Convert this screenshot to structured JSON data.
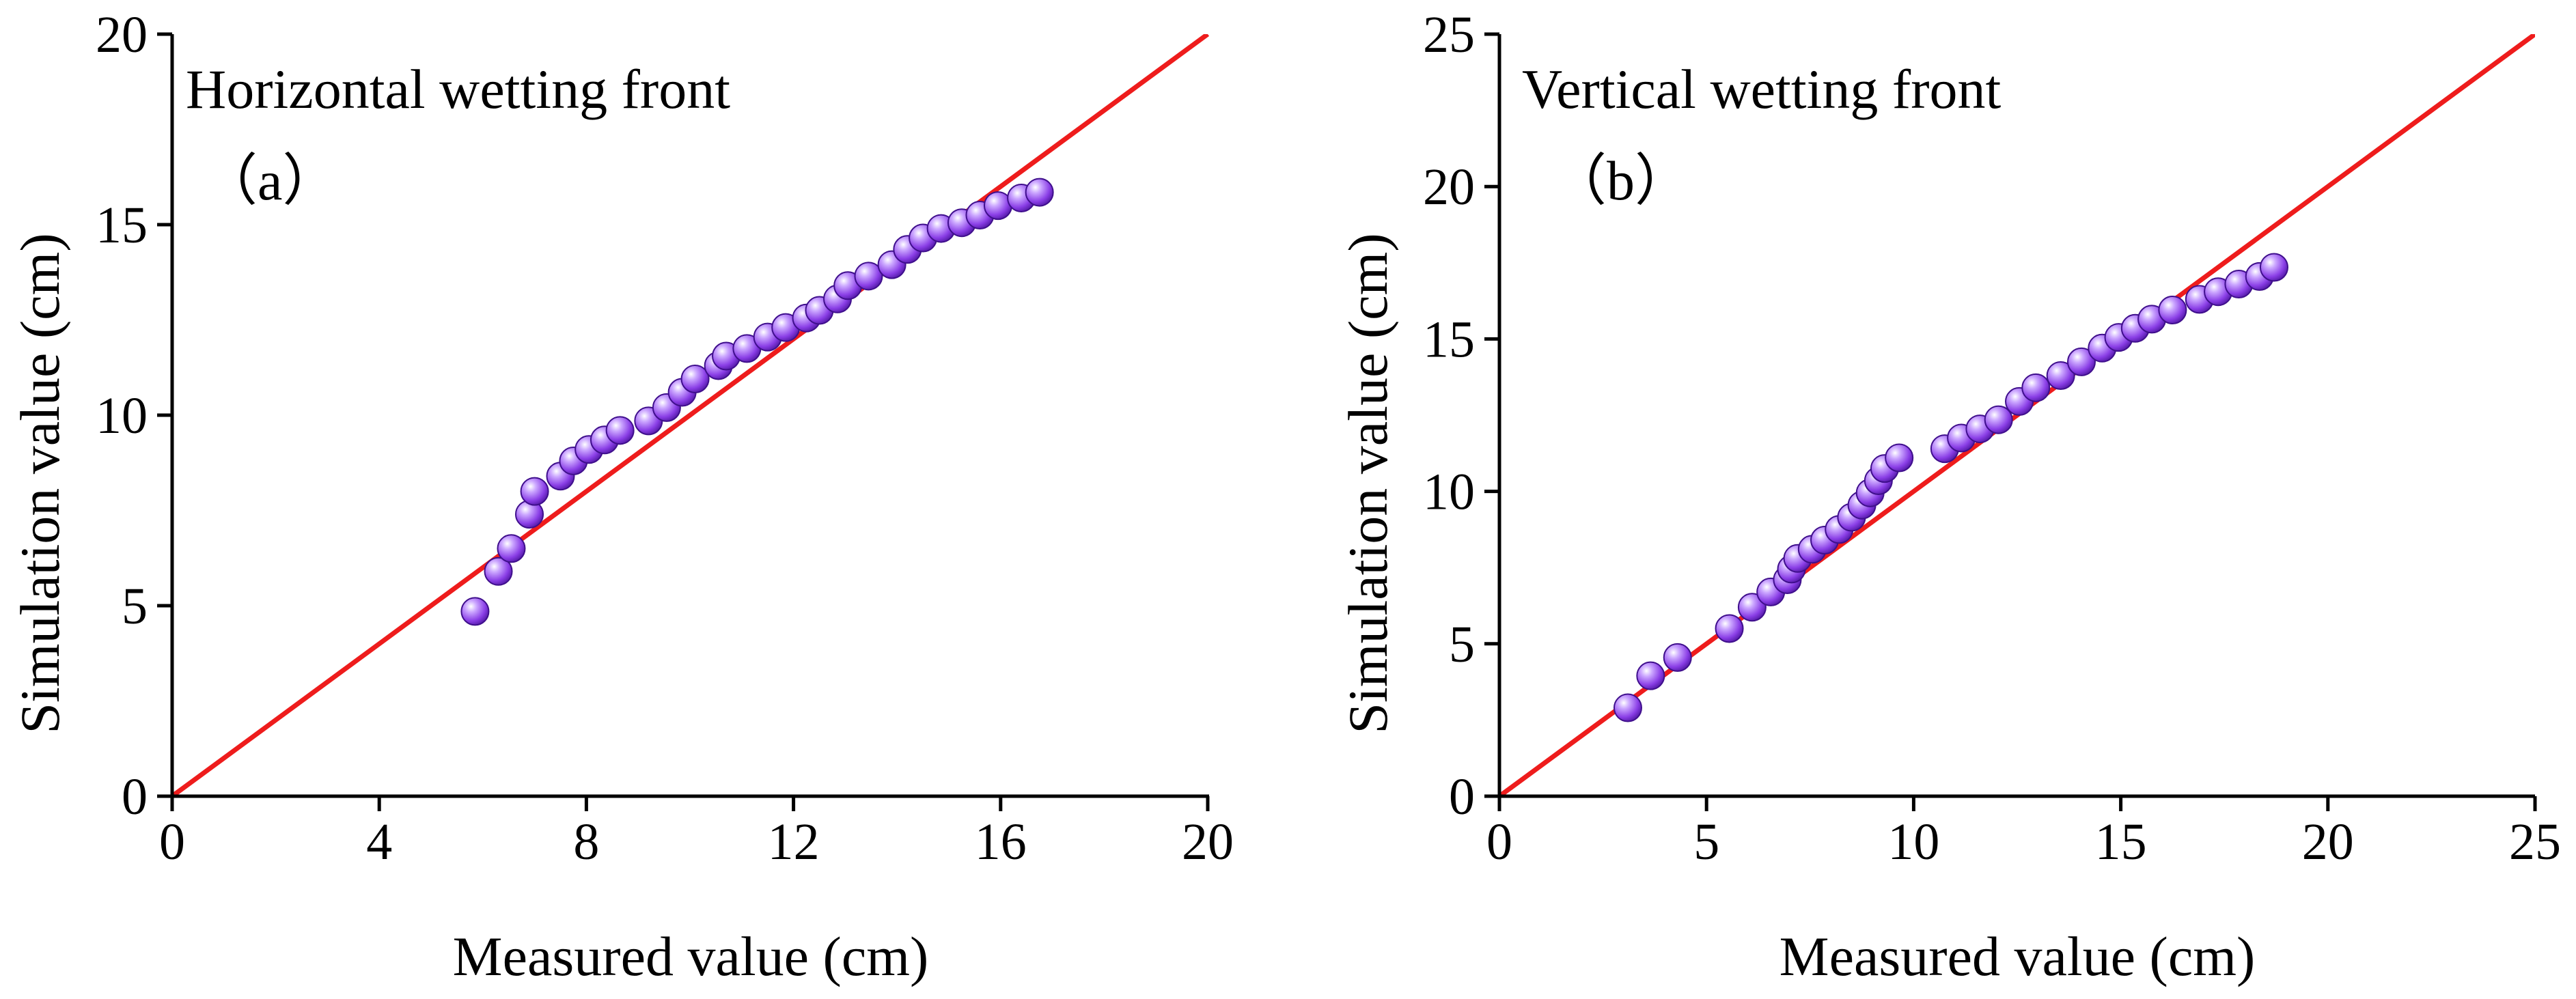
{
  "chart_data": [
    {
      "type": "scatter",
      "title": "Horizontal wetting front",
      "panel_label": "（a）",
      "xlabel": "Measured value (cm)",
      "ylabel": "Simulation value (cm)",
      "xlim": [
        0,
        20
      ],
      "ylim": [
        0,
        20
      ],
      "xticks": [
        "0",
        "4",
        "8",
        "12",
        "16",
        "20"
      ],
      "yticks": [
        "0",
        "5",
        "10",
        "15",
        "20"
      ],
      "reference_line": {
        "name": "1:1 line",
        "color": "#ee1c1c",
        "from": [
          0,
          0
        ],
        "to": [
          20,
          20
        ]
      },
      "marker_color": "#8a3ee6",
      "series": [
        {
          "name": "Horizontal wetting front",
          "points": [
            [
              5.85,
              4.85
            ],
            [
              6.3,
              5.9
            ],
            [
              6.55,
              6.5
            ],
            [
              6.9,
              7.4
            ],
            [
              7.0,
              8.0
            ],
            [
              7.5,
              8.4
            ],
            [
              7.75,
              8.8
            ],
            [
              8.05,
              9.1
            ],
            [
              8.35,
              9.35
            ],
            [
              8.65,
              9.6
            ],
            [
              9.2,
              9.85
            ],
            [
              9.55,
              10.2
            ],
            [
              9.85,
              10.6
            ],
            [
              10.1,
              10.95
            ],
            [
              10.55,
              11.3
            ],
            [
              10.7,
              11.55
            ],
            [
              11.1,
              11.75
            ],
            [
              11.5,
              12.05
            ],
            [
              11.85,
              12.3
            ],
            [
              12.25,
              12.55
            ],
            [
              12.5,
              12.75
            ],
            [
              12.85,
              13.05
            ],
            [
              13.05,
              13.4
            ],
            [
              13.45,
              13.65
            ],
            [
              13.9,
              13.95
            ],
            [
              14.2,
              14.35
            ],
            [
              14.5,
              14.65
            ],
            [
              14.85,
              14.9
            ],
            [
              15.25,
              15.05
            ],
            [
              15.6,
              15.25
            ],
            [
              15.95,
              15.5
            ],
            [
              16.4,
              15.7
            ],
            [
              16.75,
              15.85
            ]
          ]
        }
      ]
    },
    {
      "type": "scatter",
      "title": "Vertical wetting front",
      "panel_label": "（b）",
      "xlabel": "Measured value (cm)",
      "ylabel": "Simulation value (cm)",
      "xlim": [
        0,
        25
      ],
      "ylim": [
        0,
        25
      ],
      "xticks": [
        "0",
        "5",
        "10",
        "15",
        "20",
        "25"
      ],
      "yticks": [
        "0",
        "5",
        "10",
        "15",
        "20",
        "25"
      ],
      "reference_line": {
        "name": "1:1 line",
        "color": "#ee1c1c",
        "from": [
          0,
          0
        ],
        "to": [
          25,
          25
        ]
      },
      "marker_color": "#8a3ee6",
      "series": [
        {
          "name": "Vertical wetting front",
          "points": [
            [
              3.1,
              2.9
            ],
            [
              3.65,
              3.95
            ],
            [
              4.3,
              4.55
            ],
            [
              5.55,
              5.5
            ],
            [
              6.1,
              6.2
            ],
            [
              6.55,
              6.7
            ],
            [
              6.95,
              7.1
            ],
            [
              7.05,
              7.45
            ],
            [
              7.2,
              7.8
            ],
            [
              7.55,
              8.1
            ],
            [
              7.85,
              8.4
            ],
            [
              8.2,
              8.75
            ],
            [
              8.5,
              9.15
            ],
            [
              8.75,
              9.55
            ],
            [
              8.95,
              9.95
            ],
            [
              9.15,
              10.35
            ],
            [
              9.3,
              10.75
            ],
            [
              9.65,
              11.1
            ],
            [
              10.75,
              11.4
            ],
            [
              11.15,
              11.75
            ],
            [
              11.6,
              12.05
            ],
            [
              12.05,
              12.35
            ],
            [
              12.55,
              12.95
            ],
            [
              12.95,
              13.4
            ],
            [
              13.55,
              13.8
            ],
            [
              14.05,
              14.25
            ],
            [
              14.55,
              14.7
            ],
            [
              14.95,
              15.05
            ],
            [
              15.35,
              15.35
            ],
            [
              15.75,
              15.65
            ],
            [
              16.25,
              15.95
            ],
            [
              16.9,
              16.3
            ],
            [
              17.35,
              16.55
            ],
            [
              17.85,
              16.8
            ],
            [
              18.35,
              17.05
            ],
            [
              18.7,
              17.35
            ]
          ]
        }
      ]
    }
  ]
}
